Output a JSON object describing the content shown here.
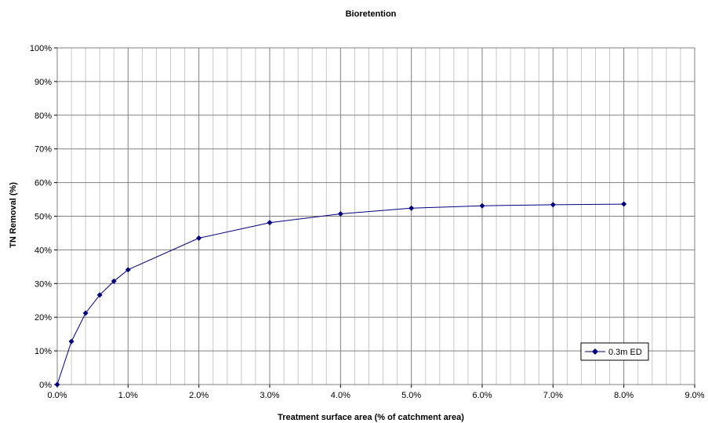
{
  "chart_data": {
    "type": "line",
    "title": "Bioretention",
    "xlabel": "Treatment surface area (% of catchment area)",
    "ylabel": "TN Removal (%)",
    "x_ticks": [
      "0.0%",
      "1.0%",
      "2.0%",
      "3.0%",
      "4.0%",
      "5.0%",
      "6.0%",
      "7.0%",
      "8.0%",
      "9.0%"
    ],
    "y_ticks": [
      "0%",
      "10%",
      "20%",
      "30%",
      "40%",
      "50%",
      "60%",
      "70%",
      "80%",
      "90%",
      "100%"
    ],
    "xlim": [
      0,
      9
    ],
    "ylim": [
      0,
      100
    ],
    "grid": true,
    "legend_position": "bottom-right",
    "series": [
      {
        "name": "0.3m ED",
        "color": "#000080",
        "marker": "diamond",
        "x": [
          0,
          0.2,
          0.4,
          0.6,
          0.8,
          1.0,
          2.0,
          3.0,
          4.0,
          5.0,
          6.0,
          7.0,
          8.0
        ],
        "y": [
          0,
          12.8,
          21.2,
          26.6,
          30.7,
          34.1,
          43.5,
          48.1,
          50.7,
          52.4,
          53.1,
          53.4,
          53.6
        ]
      }
    ]
  }
}
